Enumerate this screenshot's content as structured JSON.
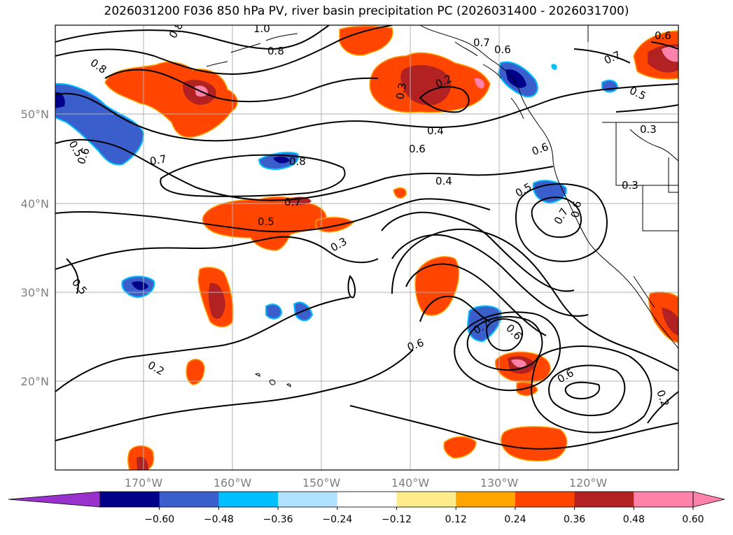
{
  "title": "2026031200 F036 850 hPa PV, river basin precipitation PC (2026031400 - 2026031700)",
  "lat_labels": [
    "50°N",
    "40°N",
    "30°N",
    "20°N"
  ],
  "lon_labels": [
    "170°W",
    "160°W",
    "150°W",
    "140°W",
    "130°W",
    "120°W"
  ],
  "colorbar": {
    "ticks": [
      "−0.60",
      "−0.48",
      "−0.36",
      "−0.24",
      "−0.12",
      "0.12",
      "0.24",
      "0.36",
      "0.48",
      "0.60"
    ],
    "colors": [
      "#9932cc",
      "#00008b",
      "#3a5fcd",
      "#00bfff",
      "#b0e2ff",
      "#ffffff",
      "#ffec8b",
      "#ffa500",
      "#ff4500",
      "#b22222",
      "#ff82ab",
      "#ff82ab"
    ]
  },
  "contour_labels": [
    "0.8",
    "1.0",
    "0.8",
    "0.8",
    "0.7",
    "0.6",
    "0.6",
    "0.7",
    "0.5",
    "0.5",
    "0.6",
    "0.7",
    "0.8",
    "0.7",
    "0.5",
    "0.3",
    "0.2",
    "0.4",
    "0.6",
    "0.4",
    "0.6",
    "0.5",
    "0.7",
    "0.6",
    "0.3",
    "0.3",
    "0.3",
    "0.5",
    "0.2",
    "0.6",
    "0.7",
    "0.6",
    "0.6",
    "0.2"
  ],
  "colors": {
    "grid": "#b0b0b0",
    "coast": "#000000",
    "contour": "#000000"
  }
}
